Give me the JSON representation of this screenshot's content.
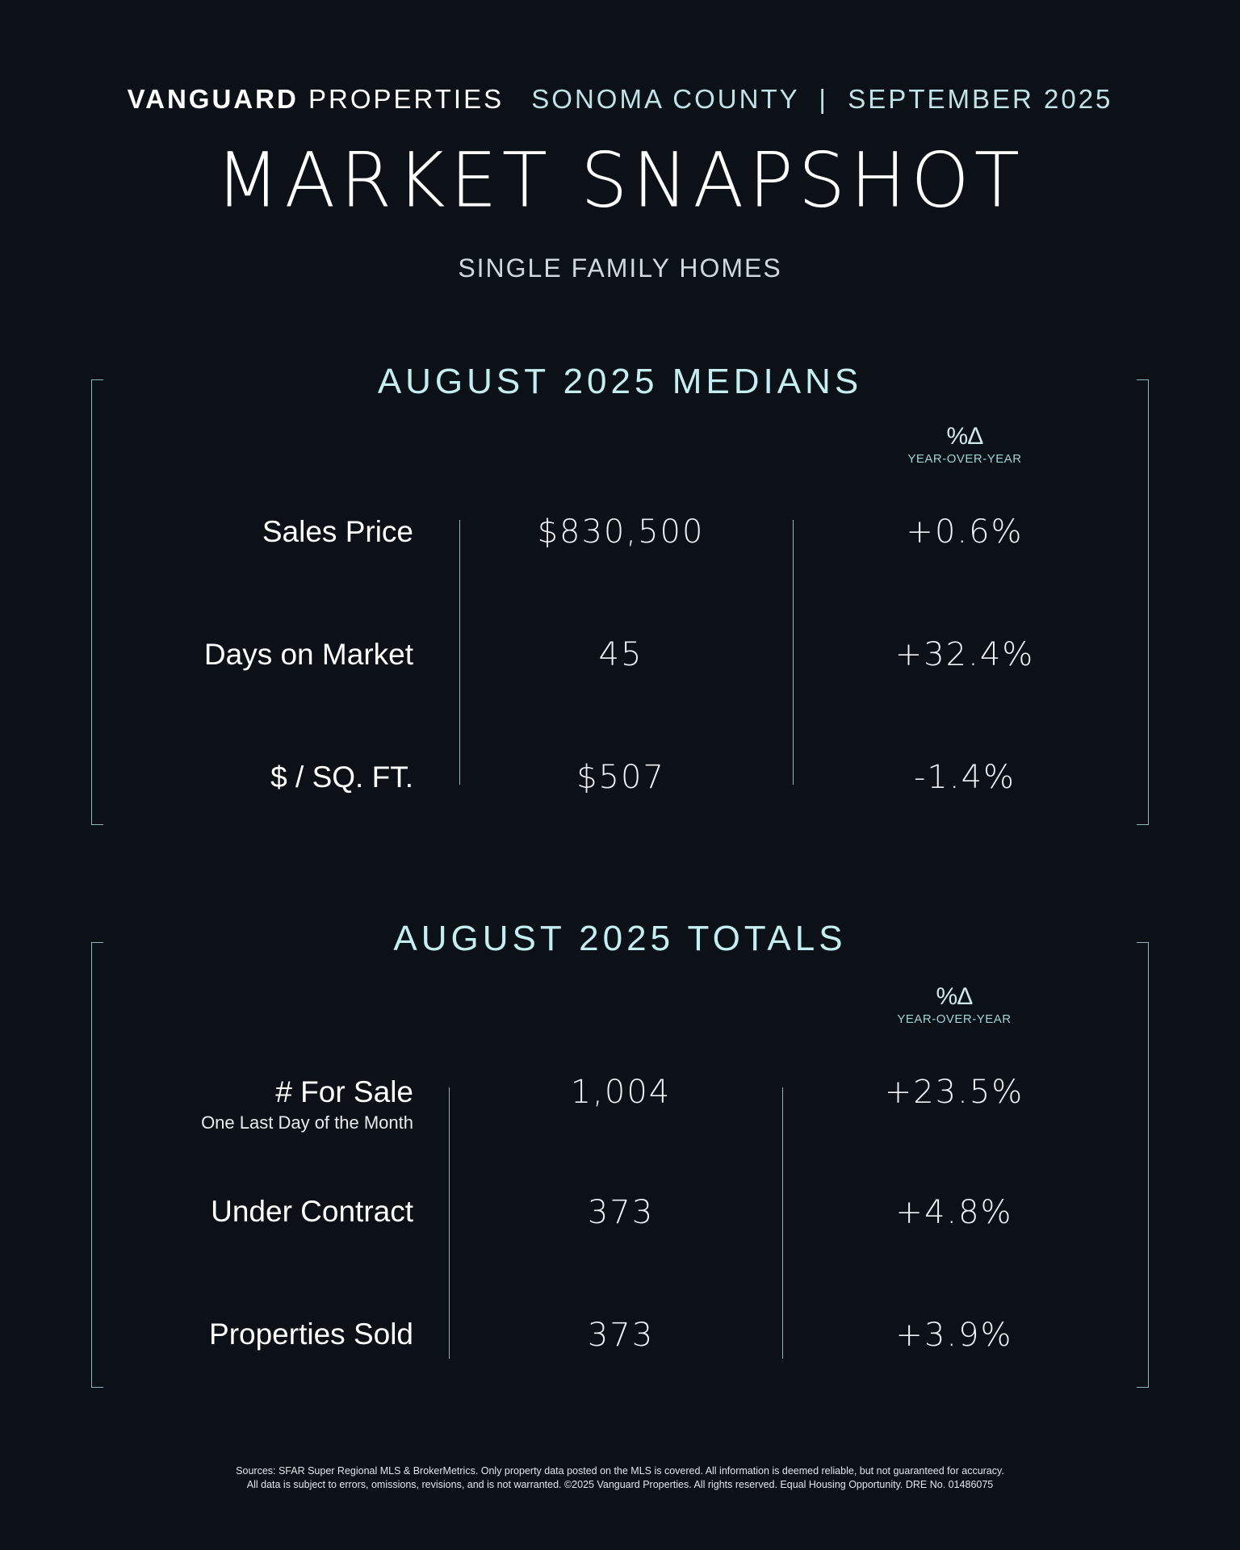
{
  "header": {
    "brand_bold": "VANGUARD",
    "brand_light": "PROPERTIES",
    "location_date": "SONOMA COUNTY  |  SEPTEMBER 2025"
  },
  "title": "MARKET SNAPSHOT",
  "subtitle": "SINGLE FAMILY HOMES",
  "medians": {
    "title": "AUGUST 2025 MEDIANS",
    "yoy_symbol": "%∆",
    "yoy_label": "YEAR-OVER-YEAR",
    "rows": [
      {
        "label": "Sales Price",
        "value": "$830,500",
        "change": "+0.6%"
      },
      {
        "label": "Days on Market",
        "value": "45",
        "change": "+32.4%"
      },
      {
        "label": "$ / SQ. FT.",
        "value": "$507",
        "change": "-1.4%"
      }
    ]
  },
  "totals": {
    "title": "AUGUST 2025 TOTALS",
    "yoy_symbol": "%∆",
    "yoy_label": "YEAR-OVER-YEAR",
    "rows": [
      {
        "label": "# For Sale",
        "sublabel": "One Last Day of the Month",
        "value": "1,004",
        "change": "+23.5%"
      },
      {
        "label": "Under Contract",
        "value": "373",
        "change": "+4.8%"
      },
      {
        "label": "Properties Sold",
        "value": "373",
        "change": "+3.9%"
      }
    ]
  },
  "footer": {
    "line1": "Sources: SFAR Super Regional MLS & BrokerMetrics. Only property data posted on the MLS is covered. All information is deemed reliable, but not guaranteed for accuracy.",
    "line2": "All data is subject to errors, omissions, revisions, and is not warranted. ©2025 Vanguard Properties. All rights reserved. Equal Housing Opportunity. DRE No. 01486075"
  }
}
